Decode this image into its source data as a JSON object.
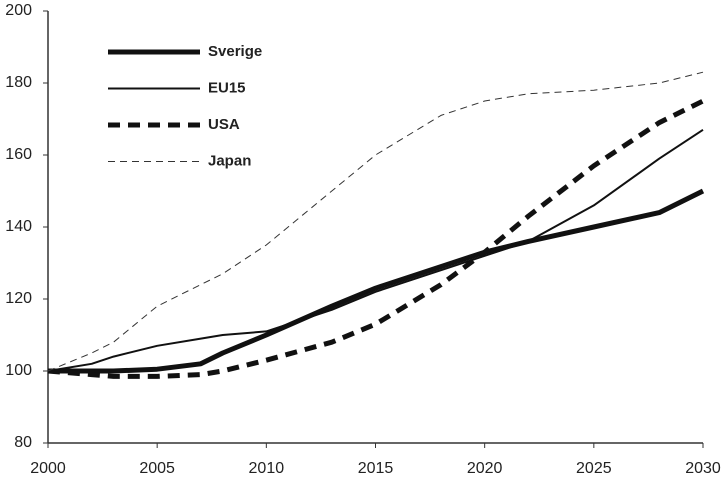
{
  "chart_data": {
    "type": "line",
    "x": [
      2000,
      2002,
      2003,
      2005,
      2007,
      2008,
      2010,
      2013,
      2015,
      2018,
      2020,
      2022,
      2025,
      2028,
      2030
    ],
    "series": [
      {
        "name": "Sverige",
        "color": "#111111",
        "width": 5,
        "dash": "none",
        "values": [
          100,
          100,
          100,
          100.5,
          102,
          105,
          110,
          118,
          123,
          129,
          133,
          136,
          140,
          144,
          150
        ]
      },
      {
        "name": "EU15",
        "color": "#111111",
        "width": 2,
        "dash": "none",
        "values": [
          100,
          102,
          104,
          107,
          109,
          110,
          111,
          117,
          122,
          128,
          132,
          136,
          146,
          159,
          167
        ]
      },
      {
        "name": "USA",
        "color": "#111111",
        "width": 5,
        "dash": "12 8",
        "values": [
          100,
          99,
          98.5,
          98.5,
          99,
          100,
          103,
          108,
          113,
          124,
          133,
          143,
          157,
          169,
          175
        ]
      },
      {
        "name": "Japan",
        "color": "#333333",
        "width": 1,
        "dash": "7 5",
        "values": [
          100,
          105,
          108,
          118,
          124,
          127,
          135,
          150,
          160,
          171,
          175,
          177,
          178,
          180,
          183
        ]
      }
    ],
    "xlim": [
      2000,
      2030
    ],
    "xticks": [
      2000,
      2005,
      2010,
      2015,
      2020,
      2025,
      2030
    ],
    "ylim": [
      80,
      200
    ],
    "yticks": [
      80,
      100,
      120,
      140,
      160,
      180,
      200
    ]
  }
}
